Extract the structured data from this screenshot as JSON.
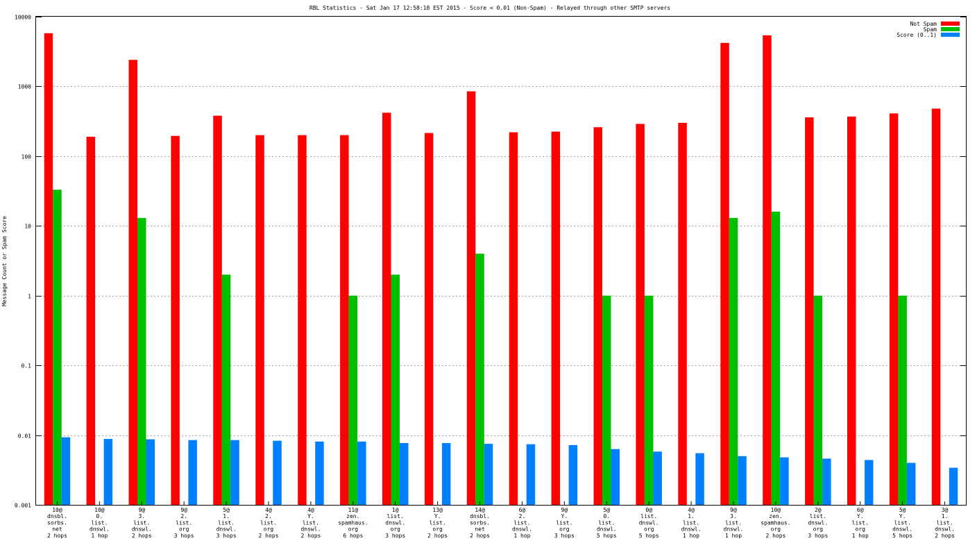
{
  "chart_data": {
    "type": "bar",
    "title": "RBL Statistics - Sat Jan 17 12:58:18 EST 2015 - Score < 0.01 (Non-Spam) - Relayed through other SMTP servers",
    "xlabel": "",
    "ylabel": "Message Count or Spam Score",
    "yscale": "log",
    "ylim": [
      0.001,
      10000
    ],
    "yticks": [
      "0.001",
      "0.01",
      "0.1",
      "1",
      "10",
      "100",
      "1000",
      "10000"
    ],
    "grid": true,
    "legend_position": "top-right",
    "categories": [
      [
        "10@",
        "dnsbl.",
        "sorbs.",
        "net",
        "2 hops"
      ],
      [
        "10@",
        "0.",
        "list.",
        "dnswl.",
        "1 hop"
      ],
      [
        "9@",
        "3.",
        "list.",
        "dnswl.",
        "2 hops"
      ],
      [
        "9@",
        "2.",
        "list.",
        "org",
        "3 hops"
      ],
      [
        "5@",
        "1.",
        "list.",
        "dnswl.",
        "3 hops"
      ],
      [
        "4@",
        "2.",
        "list.",
        "org",
        "2 hops"
      ],
      [
        "4@",
        "Y.",
        "list.",
        "dnswl.",
        "2 hops"
      ],
      [
        "11@",
        "zen.",
        "spamhaus.",
        "org",
        "6 hops"
      ],
      [
        "1@",
        "list.",
        "dnswl.",
        "org",
        "3 hops"
      ],
      [
        "13@",
        "Y.",
        "list.",
        "org",
        "2 hops"
      ],
      [
        "14@",
        "dnsbl.",
        "sorbs.",
        "net",
        "2 hops"
      ],
      [
        "6@",
        "2.",
        "list.",
        "dnswl.",
        "1 hop"
      ],
      [
        "9@",
        "Y.",
        "list.",
        "org",
        "3 hops"
      ],
      [
        "5@",
        "0.",
        "list.",
        "dnswl.",
        "5 hops"
      ],
      [
        "0@",
        "list.",
        "dnswl.",
        "org",
        "5 hops"
      ],
      [
        "4@",
        "1.",
        "list.",
        "dnswl.",
        "1 hop"
      ],
      [
        "9@",
        "3.",
        "list.",
        "dnswl.",
        "1 hop"
      ],
      [
        "10@",
        "zen.",
        "spamhaus.",
        "org",
        "2 hops"
      ],
      [
        "2@",
        "list.",
        "dnswl.",
        "org",
        "3 hops"
      ],
      [
        "6@",
        "Y.",
        "list.",
        "org",
        "1 hop"
      ],
      [
        "5@",
        "Y.",
        "list.",
        "dnswl.",
        "5 hops"
      ],
      [
        "3@",
        "1.",
        "list.",
        "dnswl.",
        "2 hops"
      ]
    ],
    "series": [
      {
        "name": "Not Spam",
        "color": "#ff0000",
        "values": [
          5800,
          190,
          2400,
          195,
          380,
          200,
          200,
          200,
          420,
          215,
          850,
          220,
          225,
          260,
          290,
          300,
          4200,
          5400,
          360,
          370,
          410,
          480
        ]
      },
      {
        "name": "Spam",
        "color": "#00c000",
        "values": [
          33,
          null,
          13,
          null,
          2,
          null,
          null,
          1,
          2,
          null,
          4,
          null,
          null,
          1,
          1,
          null,
          13,
          16,
          1,
          null,
          1,
          null
        ]
      },
      {
        "name": "Score (0..1)",
        "color": "#0080ff",
        "values": [
          0.0093,
          0.0088,
          0.0087,
          0.0085,
          0.0085,
          0.0083,
          0.0081,
          0.0081,
          0.0077,
          0.0077,
          0.0075,
          0.0074,
          0.0072,
          0.0063,
          0.0058,
          0.0055,
          0.005,
          0.0048,
          0.0046,
          0.0044,
          0.004,
          0.0034
        ]
      }
    ]
  }
}
